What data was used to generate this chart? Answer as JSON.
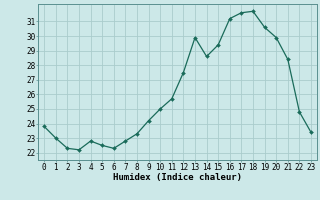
{
  "x": [
    0,
    1,
    2,
    3,
    4,
    5,
    6,
    7,
    8,
    9,
    10,
    11,
    12,
    13,
    14,
    15,
    16,
    17,
    18,
    19,
    20,
    21,
    22,
    23
  ],
  "y": [
    23.8,
    23.0,
    22.3,
    22.2,
    22.8,
    22.5,
    22.3,
    22.8,
    23.3,
    24.2,
    25.0,
    25.7,
    27.5,
    29.9,
    28.6,
    29.4,
    31.2,
    31.6,
    31.7,
    30.6,
    29.9,
    28.4,
    24.8,
    23.4
  ],
  "line_color": "#1a6b5a",
  "marker": "D",
  "marker_size": 2.0,
  "bg_color": "#cce8e8",
  "grid_color": "#aacccc",
  "xlabel": "Humidex (Indice chaleur)",
  "xlim": [
    -0.5,
    23.5
  ],
  "ylim": [
    21.5,
    32.2
  ],
  "xticks": [
    0,
    1,
    2,
    3,
    4,
    5,
    6,
    7,
    8,
    9,
    10,
    11,
    12,
    13,
    14,
    15,
    16,
    17,
    18,
    19,
    20,
    21,
    22,
    23
  ],
  "yticks": [
    22,
    23,
    24,
    25,
    26,
    27,
    28,
    29,
    30,
    31
  ],
  "tick_fontsize": 5.5,
  "label_fontsize": 6.5
}
